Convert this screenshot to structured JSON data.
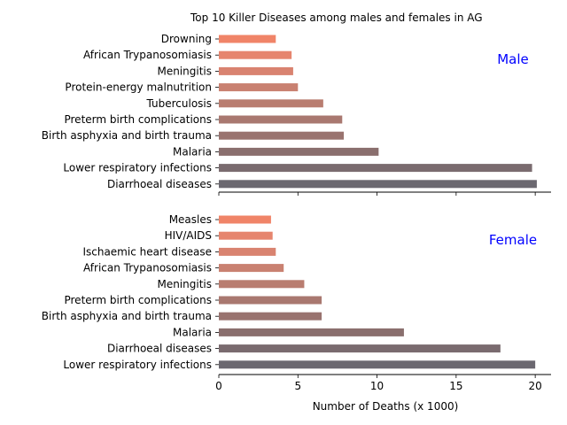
{
  "chart_data": {
    "type": "bar",
    "orientation": "horizontal",
    "title": "Top 10 Killer Diseases among males and females in AG",
    "xlabel": "Number of Deaths (x 1000)",
    "xlim": [
      0,
      21
    ],
    "x_ticks": [
      "0",
      "5",
      "10",
      "15",
      "20"
    ],
    "grid": false,
    "panels": [
      {
        "name": "Male",
        "categories": [
          "Drowning",
          "African Trypanosomiasis",
          "Meningitis",
          "Protein-energy malnutrition",
          "Tuberculosis",
          "Preterm birth complications",
          "Birth asphyxia and birth trauma",
          "Malaria",
          "Lower respiratory infections",
          "Diarrhoeal diseases"
        ],
        "values": [
          3.6,
          4.6,
          4.7,
          5.0,
          6.6,
          7.8,
          7.9,
          10.1,
          19.8,
          20.1
        ]
      },
      {
        "name": "Female",
        "categories": [
          "Measles",
          "HIV/AIDS",
          "Ischaemic heart disease",
          "African Trypanosomiasis",
          "Meningitis",
          "Preterm birth complications",
          "Birth asphyxia and birth trauma",
          "Malaria",
          "Diarrhoeal diseases",
          "Lower respiratory infections"
        ],
        "values": [
          3.3,
          3.4,
          3.6,
          4.1,
          5.4,
          6.5,
          6.5,
          11.7,
          17.8,
          20.0
        ]
      }
    ],
    "colors": [
      "#f08468",
      "#e6856e",
      "#d98370",
      "#c98171",
      "#b97d70",
      "#a97870",
      "#99736f",
      "#8a6f6e",
      "#7a6b6f",
      "#6b6870"
    ],
    "label_color": "#0000ff"
  }
}
